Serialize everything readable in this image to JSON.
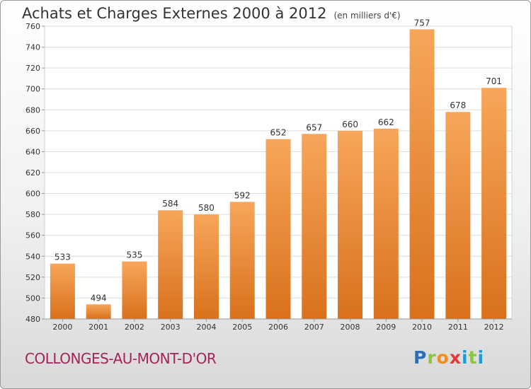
{
  "header": {
    "title": "Achats et Charges Externes 2000 à 2012",
    "unit": "(en milliers d'€)"
  },
  "footer": {
    "place": "COLLONGES-AU-MONT-D'OR",
    "logo": [
      "P",
      "r",
      "o",
      "x",
      "i",
      "t",
      "i"
    ]
  },
  "colors": {
    "bar_light": "#f7a65a",
    "bar_dark": "#d9711c",
    "grid": "#dddddd",
    "axis_text": "#333333"
  },
  "chart_data": {
    "type": "bar",
    "title": "Achats et Charges Externes 2000 à 2012",
    "subtitle": "(en milliers d'€)",
    "categories": [
      "2000",
      "2001",
      "2002",
      "2003",
      "2004",
      "2005",
      "2006",
      "2007",
      "2008",
      "2009",
      "2010",
      "2011",
      "2012"
    ],
    "values": [
      533,
      494,
      535,
      584,
      580,
      592,
      652,
      657,
      660,
      662,
      757,
      678,
      701
    ],
    "ylim": [
      480,
      760
    ],
    "yticks": [
      480,
      500,
      520,
      540,
      560,
      580,
      600,
      620,
      640,
      660,
      680,
      700,
      720,
      740,
      760
    ],
    "grid": true
  }
}
